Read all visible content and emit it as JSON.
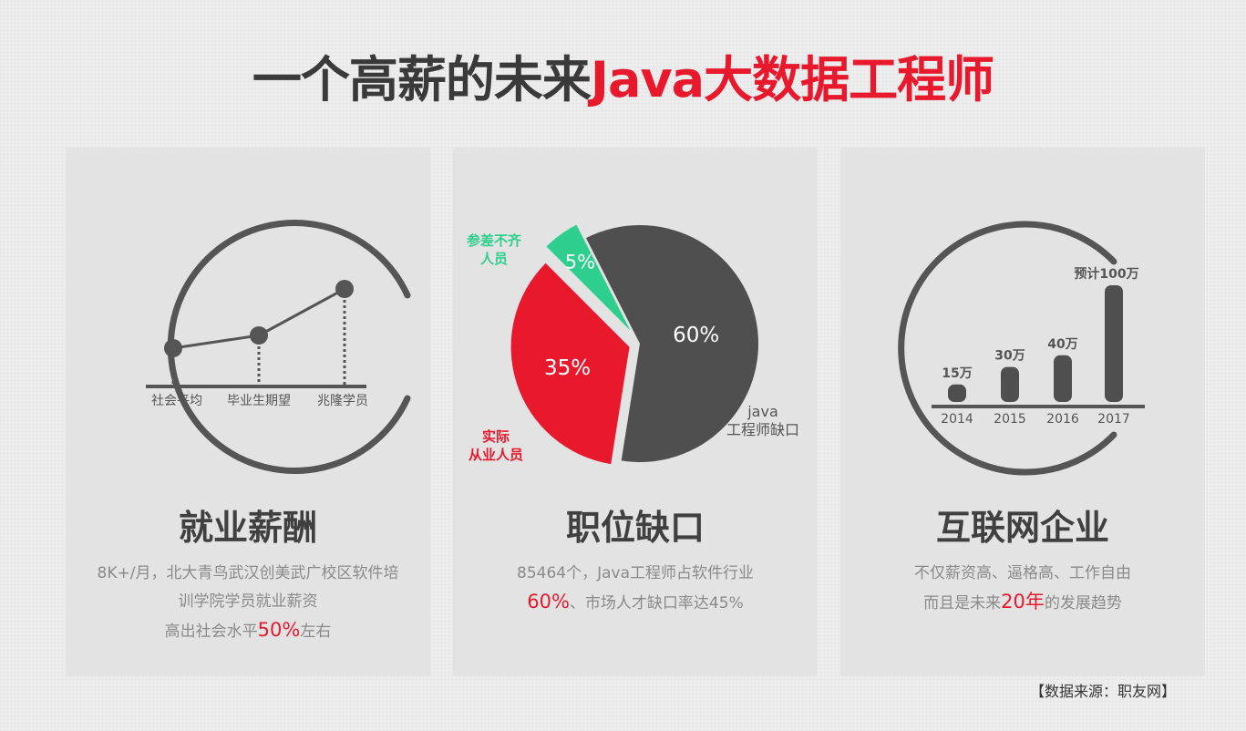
{
  "title": {
    "part1": "一个高薪的未来",
    "part2": "Java大数据工程师"
  },
  "panels": [
    {
      "title": "就业薪酬",
      "chart_labels": [
        "社会平均",
        "毕业生期望",
        "兆隆学员"
      ],
      "desc": {
        "line1": "8K+/月，北大青鸟武汉创美武广校区软件培",
        "line2": "训学院学员就业薪资",
        "line3_pre": "高出社会水平",
        "line3_hl": "50%",
        "line3_post": "左右"
      }
    },
    {
      "title": "职位缺口",
      "desc": {
        "line1": "85464个，Java工程师占软件行业",
        "line2_hl": "60%",
        "line2_post": "、市场人才缺口率达45%"
      }
    },
    {
      "title": "互联网企业",
      "desc": {
        "line1": "不仅薪资高、逼格高、工作自由",
        "line2_pre": "而且是未来",
        "line2_hl": "20年",
        "line2_post": "的发展趋势"
      }
    }
  ],
  "chart_data": [
    {
      "type": "pie",
      "slices": [
        {
          "label_lines": [
            "java",
            "工程师缺口"
          ],
          "value": 60,
          "value_label": "60%",
          "color": "#4f4f4f"
        },
        {
          "label_lines": [
            "实际",
            "从业人员"
          ],
          "value": 35,
          "value_label": "35%",
          "color": "#e8192c"
        },
        {
          "label_lines": [
            "参差不齐",
            "人员"
          ],
          "value": 5,
          "value_label": "5%",
          "color": "#2ecf8e"
        }
      ]
    },
    {
      "type": "bar",
      "categories": [
        "2014",
        "2015",
        "2016",
        "2017"
      ],
      "values": [
        15,
        30,
        40,
        100
      ],
      "value_labels": [
        "15万",
        "30万",
        "40万",
        "预计100万"
      ],
      "color": "#4f4f4f"
    }
  ],
  "source": "【数据来源：职友网】"
}
